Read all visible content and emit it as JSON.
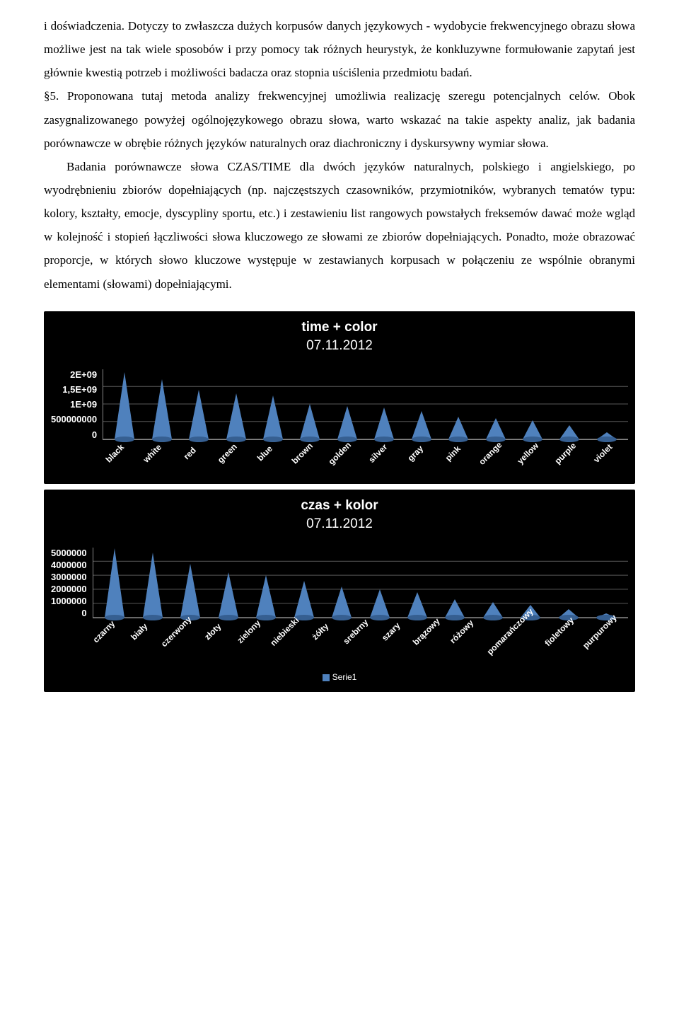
{
  "text": {
    "p1": "i doświadczenia. Dotyczy to zwłaszcza dużych korpusów danych językowych - wydobycie frekwencyjnego obrazu słowa możliwe jest na tak wiele sposobów i przy pomocy tak różnych heurystyk, że konkluzywne formułowanie zapytań jest głównie kwestią potrzeb i możliwości badacza oraz stopnia uściślenia przedmiotu badań.",
    "p2": "§5. Proponowana tutaj metoda analizy frekwencyjnej umożliwia realizację szeregu potencjalnych celów. Obok zasygnalizowanego powyżej ogólnojęzykowego obrazu słowa, warto wskazać na takie aspekty analiz, jak badania porównawcze w obrębie różnych języków naturalnych oraz diachroniczny i dyskursywny wymiar słowa.",
    "p3": "Badania porównawcze słowa CZAS/TIME dla dwóch języków naturalnych, polskiego i angielskiego, po wyodrębnieniu zbiorów dopełniających (np. najczęstszych czasowników, przymiotników, wybranych tematów typu: kolory, kształty, emocje, dyscypliny sportu, etc.) i zestawieniu list rangowych powstałych freksemów dawać może wgląd w kolejność i stopień łączliwości słowa kluczowego ze słowami ze zbiorów dopełniających. Ponadto, może obrazować proporcje, w których słowo kluczowe występuje w zestawianych korpusach w połączeniu ze wspólnie obranymi elementami (słowami) dopełniającymi."
  },
  "chart1": {
    "title": "time + color",
    "subtitle": "07.11.2012",
    "background": "#000000",
    "grid_color": "#5a5a5a",
    "cone_color": "#4f81bd",
    "cone_base_color": "#365f91",
    "text_color": "#ffffff",
    "ylabels": [
      "0",
      "500000000",
      "1E+09",
      "1,5E+09",
      "2E+09"
    ],
    "ymax": 2000000000,
    "categories": [
      "black",
      "white",
      "red",
      "green",
      "blue",
      "brown",
      "golden",
      "silver",
      "gray",
      "pink",
      "orange",
      "yellow",
      "purple",
      "violet"
    ],
    "values": [
      1900000000,
      1700000000,
      1400000000,
      1300000000,
      1250000000,
      1000000000,
      950000000,
      900000000,
      800000000,
      650000000,
      600000000,
      550000000,
      400000000,
      200000000
    ]
  },
  "chart2": {
    "title": "czas + kolor",
    "subtitle": "07.11.2012",
    "background": "#000000",
    "grid_color": "#5a5a5a",
    "cone_color": "#4f81bd",
    "cone_base_color": "#365f91",
    "text_color": "#ffffff",
    "ylabels": [
      "0",
      "1000000",
      "2000000",
      "3000000",
      "4000000",
      "5000000"
    ],
    "ymax": 5000000,
    "categories": [
      "czarny",
      "biały",
      "czerwony",
      "złoty",
      "zielony",
      "niebieski",
      "żółty",
      "srebrny",
      "szary",
      "brązowy",
      "różowy",
      "pomarańczowy",
      "fioletowy",
      "purpurowy"
    ],
    "values": [
      4900000,
      4600000,
      3800000,
      3200000,
      3000000,
      2600000,
      2200000,
      2000000,
      1800000,
      1300000,
      1100000,
      900000,
      600000,
      300000
    ],
    "legend_label": "Serie1",
    "legend_color": "#4f81bd"
  }
}
